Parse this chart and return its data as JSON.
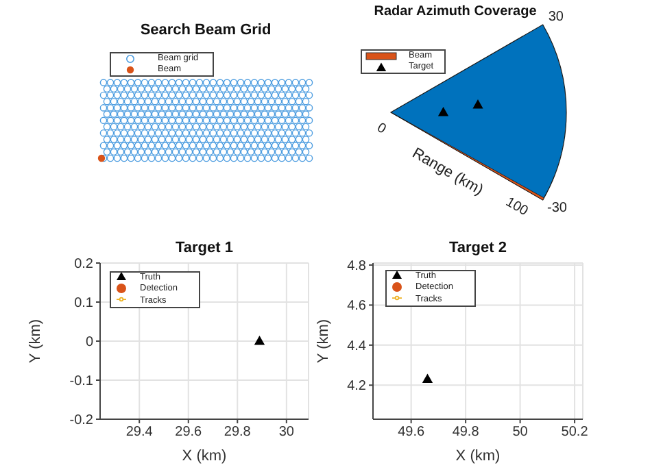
{
  "chart_data": [
    {
      "type": "other",
      "title": "Search Beam Grid",
      "annotations": [
        "Beam grid",
        "Beam"
      ]
    },
    {
      "type": "other",
      "title": "Radar Azimuth Coverage",
      "annotations": [
        "Beam",
        "Target",
        "0",
        "100",
        "-30",
        "30",
        "Range (km)"
      ]
    },
    {
      "type": "scatter",
      "title": "Target 1",
      "xlabel": "X (km)",
      "ylabel": "Y (km)",
      "xlim": [
        29.24,
        30.09
      ],
      "ylim": [
        -0.2,
        0.2
      ],
      "xticks": [
        29.4,
        29.6,
        29.8,
        30
      ],
      "yticks": [
        -0.2,
        -0.1,
        0,
        0.1,
        0.2
      ],
      "grid": true,
      "legend": "top left",
      "series": [
        {
          "name": "Truth",
          "type": "scatter",
          "marker": "triangle",
          "color": "#000000",
          "x": [
            29.89
          ],
          "values": [
            0
          ]
        },
        {
          "name": "Detection",
          "type": "scatter",
          "marker": "circle",
          "color": "#d95319"
        },
        {
          "name": "Tracks",
          "type": "line",
          "marker": "circle",
          "color": "#edb120"
        }
      ]
    },
    {
      "type": "scatter",
      "title": "Target 2",
      "xlabel": "X (km)",
      "ylabel": "Y (km)",
      "xlim": [
        49.46,
        50.23
      ],
      "ylim": [
        4.03,
        4.81
      ],
      "xticks": [
        49.6,
        49.8,
        50,
        50.2
      ],
      "yticks": [
        4.2,
        4.4,
        4.6,
        4.8
      ],
      "grid": true,
      "legend": "top left",
      "series": [
        {
          "name": "Truth",
          "type": "scatter",
          "marker": "triangle",
          "color": "#000000",
          "x": [
            49.66
          ],
          "values": [
            4.23
          ]
        },
        {
          "name": "Detection",
          "type": "scatter",
          "marker": "circle",
          "color": "#d95319"
        },
        {
          "name": "Tracks",
          "type": "line",
          "marker": "circle",
          "color": "#edb120"
        }
      ]
    }
  ]
}
